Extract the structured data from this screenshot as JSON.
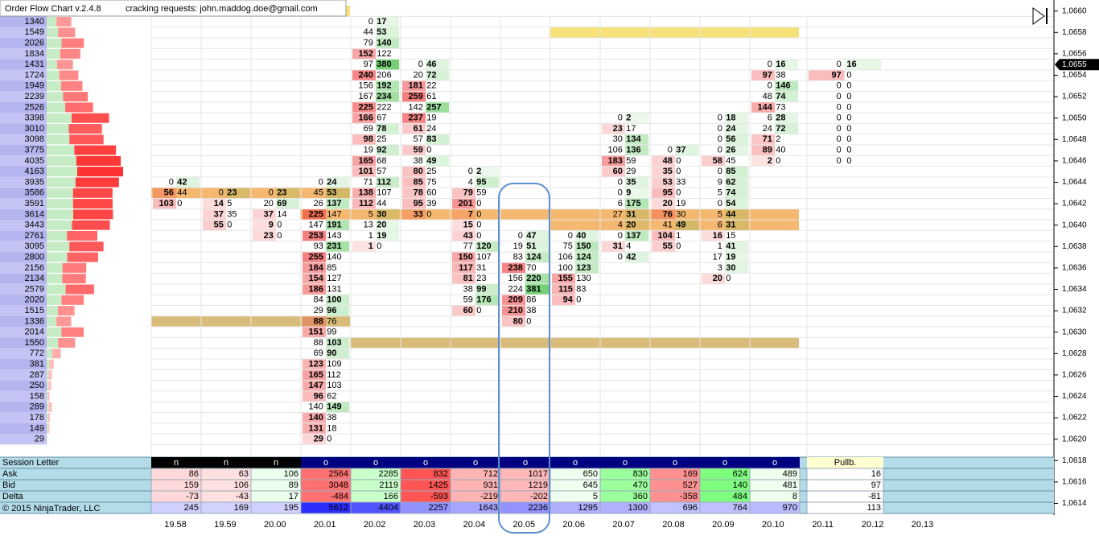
{
  "header": {
    "title": "Order Flow Chart v.2.4.8",
    "note": "cracking requests: john.maddog.doe@gmail.com"
  },
  "price_axis": {
    "ticks": [
      {
        "value": 1.066,
        "label": "1,0660"
      },
      {
        "value": 1.0658,
        "label": "1,0658"
      },
      {
        "value": 1.0656,
        "label": "1,0656"
      },
      {
        "value": 1.0654,
        "label": "1,0654"
      },
      {
        "value": 1.0652,
        "label": "1,0652"
      },
      {
        "value": 1.065,
        "label": "1,0650"
      },
      {
        "value": 1.0648,
        "label": "1,0648"
      },
      {
        "value": 1.0646,
        "label": "1,0646"
      },
      {
        "value": 1.0644,
        "label": "1,0644"
      },
      {
        "value": 1.0642,
        "label": "1,0642"
      },
      {
        "value": 1.064,
        "label": "1,0640"
      },
      {
        "value": 1.0638,
        "label": "1,0638"
      },
      {
        "value": 1.0636,
        "label": "1,0636"
      },
      {
        "value": 1.0634,
        "label": "1,0634"
      },
      {
        "value": 1.0632,
        "label": "1,0632"
      },
      {
        "value": 1.063,
        "label": "1,0630"
      },
      {
        "value": 1.0628,
        "label": "1,0628"
      },
      {
        "value": 1.0626,
        "label": "1,0626"
      },
      {
        "value": 1.0624,
        "label": "1,0624"
      },
      {
        "value": 1.0622,
        "label": "1,0622"
      },
      {
        "value": 1.062,
        "label": "1,0620"
      },
      {
        "value": 1.0618,
        "label": "1,0618"
      },
      {
        "value": 1.0616,
        "label": "1,0616"
      },
      {
        "value": 1.0614,
        "label": "1,0614"
      }
    ],
    "current": {
      "value": 1.0655,
      "label": "1,0655"
    }
  },
  "profile": {
    "high": 1.0659,
    "volumes": [
      1340,
      1549,
      2026,
      1834,
      1431,
      1724,
      1949,
      2239,
      2526,
      3398,
      3010,
      3098,
      3775,
      4035,
      4163,
      3935,
      3586,
      3591,
      3614,
      3443,
      2761,
      3095,
      2800,
      2156,
      2134,
      2579,
      2020,
      1515,
      1336,
      2014,
      1550,
      772,
      381,
      287,
      250,
      158,
      289,
      178,
      149,
      29
    ]
  },
  "footprint": [
    {
      "high": 1.0644,
      "cells": [
        [
          0,
          42
        ],
        [
          56,
          44
        ],
        [
          103,
          0
        ]
      ]
    },
    {
      "high": 1.0643,
      "cells": [
        [
          0,
          23
        ],
        [
          14,
          5
        ],
        [
          37,
          35
        ],
        [
          55,
          0
        ]
      ]
    },
    {
      "high": 1.0643,
      "cells": [
        [
          0,
          23
        ],
        [
          20,
          69
        ],
        [
          37,
          14
        ],
        [
          9,
          0
        ],
        [
          23,
          0
        ]
      ]
    },
    {
      "high": 1.0644,
      "cells": [
        [
          0,
          24
        ],
        [
          45,
          53
        ],
        [
          26,
          137
        ],
        [
          225,
          147
        ],
        [
          147,
          191
        ],
        [
          253,
          143
        ],
        [
          93,
          231
        ],
        [
          255,
          140
        ],
        [
          184,
          85
        ],
        [
          154,
          127
        ],
        [
          186,
          131
        ],
        [
          84,
          100
        ],
        [
          29,
          96
        ],
        [
          88,
          76
        ],
        [
          151,
          99
        ],
        [
          88,
          103
        ],
        [
          69,
          90
        ],
        [
          123,
          109
        ],
        [
          165,
          112
        ],
        [
          147,
          103
        ],
        [
          96,
          62
        ],
        [
          140,
          149
        ],
        [
          140,
          38
        ],
        [
          131,
          18
        ],
        [
          29,
          0
        ]
      ]
    },
    {
      "high": 1.0659,
      "cells": [
        [
          0,
          17
        ],
        [
          44,
          53
        ],
        [
          79,
          140
        ],
        [
          152,
          122
        ],
        [
          97,
          380
        ],
        [
          240,
          206
        ],
        [
          156,
          192
        ],
        [
          167,
          234
        ],
        [
          225,
          222
        ],
        [
          166,
          67
        ],
        [
          69,
          78
        ],
        [
          98,
          25
        ],
        [
          19,
          92
        ],
        [
          165,
          68
        ],
        [
          101,
          57
        ],
        [
          71,
          112
        ],
        [
          138,
          107
        ],
        [
          112,
          44
        ],
        [
          5,
          30
        ],
        [
          13,
          20
        ],
        [
          1,
          19
        ],
        [
          1,
          0
        ]
      ]
    },
    {
      "high": 1.0655,
      "cells": [
        [
          0,
          46
        ],
        [
          20,
          72
        ],
        [
          181,
          22
        ],
        [
          259,
          61
        ],
        [
          142,
          257
        ],
        [
          237,
          19
        ],
        [
          61,
          24
        ],
        [
          57,
          83
        ],
        [
          59,
          0
        ],
        [
          38,
          49
        ],
        [
          80,
          25
        ],
        [
          85,
          75
        ],
        [
          78,
          60
        ],
        [
          95,
          39
        ],
        [
          33,
          0
        ]
      ]
    },
    {
      "high": 1.0645,
      "cells": [
        [
          0,
          2
        ],
        [
          4,
          95
        ],
        [
          79,
          59
        ],
        [
          201,
          0
        ],
        [
          7,
          0
        ],
        [
          15,
          0
        ],
        [
          43,
          0
        ],
        [
          77,
          120
        ],
        [
          150,
          107
        ],
        [
          117,
          31
        ],
        [
          81,
          23
        ],
        [
          38,
          99
        ],
        [
          59,
          176
        ],
        [
          60,
          0
        ]
      ]
    },
    {
      "high": 1.0639,
      "cells": [
        [
          0,
          47
        ],
        [
          19,
          51
        ],
        [
          83,
          124
        ],
        [
          238,
          70
        ],
        [
          156,
          220
        ],
        [
          224,
          381
        ],
        [
          209,
          86
        ],
        [
          210,
          38
        ],
        [
          80,
          0
        ]
      ]
    },
    {
      "high": 1.0639,
      "cells": [
        [
          0,
          40
        ],
        [
          75,
          150
        ],
        [
          106,
          124
        ],
        [
          100,
          123
        ],
        [
          155,
          130
        ],
        [
          115,
          83
        ],
        [
          94,
          0
        ]
      ]
    },
    {
      "high": 1.065,
      "cells": [
        [
          0,
          2
        ],
        [
          23,
          17
        ],
        [
          30,
          134
        ],
        [
          106,
          136
        ],
        [
          183,
          59
        ],
        [
          60,
          29
        ],
        [
          0,
          35
        ],
        [
          0,
          9
        ],
        [
          6,
          175
        ],
        [
          27,
          31
        ],
        [
          4,
          20
        ],
        [
          0,
          137
        ],
        [
          31,
          4
        ],
        [
          0,
          42
        ]
      ]
    },
    {
      "high": 1.0647,
      "cells": [
        [
          0,
          37
        ],
        [
          48,
          0
        ],
        [
          35,
          0
        ],
        [
          53,
          33
        ],
        [
          95,
          0
        ],
        [
          20,
          19
        ],
        [
          76,
          30
        ],
        [
          41,
          49
        ],
        [
          104,
          1
        ],
        [
          55,
          0
        ]
      ]
    },
    {
      "high": 1.065,
      "cells": [
        [
          0,
          18
        ],
        [
          0,
          24
        ],
        [
          0,
          56
        ],
        [
          0,
          26
        ],
        [
          58,
          45
        ],
        [
          0,
          85
        ],
        [
          9,
          62
        ],
        [
          5,
          74
        ],
        [
          0,
          54
        ],
        [
          5,
          44
        ],
        [
          6,
          31
        ],
        [
          16,
          15
        ],
        [
          1,
          41
        ],
        [
          17,
          19
        ],
        [
          3,
          30
        ],
        [
          20,
          0
        ]
      ]
    },
    {
      "high": 1.0655,
      "cells": [
        [
          0,
          16
        ],
        [
          97,
          38
        ],
        [
          0,
          146
        ],
        [
          48,
          74
        ],
        [
          144,
          73
        ],
        [
          6,
          28
        ],
        [
          24,
          72
        ],
        [
          71,
          2
        ],
        [
          89,
          40
        ],
        [
          2,
          0
        ]
      ]
    },
    {
      "high": 1.0655,
      "cells": [
        [
          0,
          16
        ],
        [
          97,
          0
        ],
        [
          0,
          0
        ],
        [
          0,
          0
        ],
        [
          0,
          0
        ],
        [
          0,
          0
        ],
        [
          0,
          0
        ],
        [
          0,
          0
        ],
        [
          0,
          0
        ],
        [
          0,
          0
        ]
      ]
    }
  ],
  "table": {
    "row_labels": [
      "Session Letter",
      "Ask",
      "Bid",
      "Delta"
    ],
    "copyright": "© 2015 NinjaTrader, LLC",
    "columns": [
      {
        "letter": "n",
        "ask": 86,
        "bid": 159,
        "delta": -73,
        "volume": 245
      },
      {
        "letter": "n",
        "ask": 63,
        "bid": 106,
        "delta": -43,
        "volume": 169
      },
      {
        "letter": "n",
        "ask": 106,
        "bid": 89,
        "delta": 17,
        "volume": 195
      },
      {
        "letter": "o",
        "ask": 2564,
        "bid": 3048,
        "delta": -484,
        "volume": 5612
      },
      {
        "letter": "o",
        "ask": 2285,
        "bid": 2119,
        "delta": 166,
        "volume": 4404
      },
      {
        "letter": "o",
        "ask": 832,
        "bid": 1425,
        "delta": -593,
        "volume": 2257
      },
      {
        "letter": "o",
        "ask": 712,
        "bid": 931,
        "delta": -219,
        "volume": 1643
      },
      {
        "letter": "o",
        "ask": 1017,
        "bid": 1219,
        "delta": -202,
        "volume": 2236
      },
      {
        "letter": "o",
        "ask": 650,
        "bid": 645,
        "delta": 5,
        "volume": 1295
      },
      {
        "letter": "o",
        "ask": 830,
        "bid": 470,
        "delta": 360,
        "volume": 1300
      },
      {
        "letter": "o",
        "ask": 169,
        "bid": 527,
        "delta": -358,
        "volume": 696
      },
      {
        "letter": "o",
        "ask": 624,
        "bid": 140,
        "delta": 484,
        "volume": 764
      },
      {
        "letter": "o",
        "ask": 489,
        "bid": 481,
        "delta": 8,
        "volume": 970
      },
      {
        "letter": "Pullb.",
        "ask": 16,
        "bid": 97,
        "delta": -81,
        "volume": 113
      }
    ]
  },
  "time_axis": [
    "19.58",
    "19.59",
    "20.00",
    "20.01",
    "20.02",
    "20.03",
    "20.04",
    "20.05",
    "20.06",
    "20.07",
    "20.08",
    "20.09",
    "20.10",
    "20.11",
    "20.12",
    "20.13"
  ]
}
